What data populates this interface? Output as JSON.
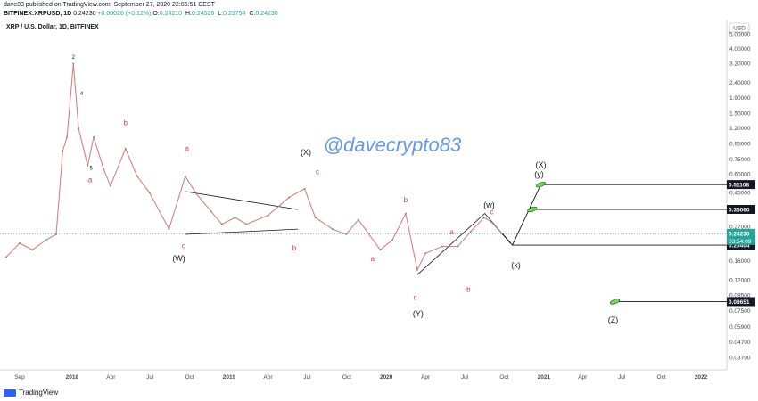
{
  "header": {
    "line1": "dave83 published on TradingView.com, September 27, 2020 22:05:51 CEST",
    "symbol": "BITFINEX:XRPUSD, 1D",
    "price": "0.24230",
    "change": "+0.00028 (+0.12%)",
    "ohlc": [
      {
        "k": "O:",
        "v": "0.24210"
      },
      {
        "k": "H:",
        "v": "0.24526"
      },
      {
        "k": "L:",
        "v": "0.23754"
      },
      {
        "k": "C:",
        "v": "0.24230"
      }
    ]
  },
  "footer": {
    "brand": "TradingView"
  },
  "chart_data": {
    "type": "line",
    "title": "XRP / U.S. Dollar, 1D, BITFINEX",
    "watermark": "@davecrypto83",
    "currency": "USD",
    "yscale": "log",
    "ylim": [
      0.032,
      6.0
    ],
    "y_ticks": [
      "5.00000",
      "4.00000",
      "3.20000",
      "2.40000",
      "1.90000",
      "1.50000",
      "1.20000",
      "0.95000",
      "0.75000",
      "0.60000",
      "0.45000",
      "0.35000",
      "0.27000",
      "0.21000",
      "0.16000",
      "0.12000",
      "0.09500",
      "0.07500",
      "0.05900",
      "0.04700",
      "0.03700"
    ],
    "x_ticks": [
      "Sep",
      "2018",
      "Apr",
      "Jul",
      "Oct",
      "2019",
      "Apr",
      "Jul",
      "Oct",
      "2020",
      "Apr",
      "Jul",
      "Oct",
      "2021",
      "Apr",
      "Jul",
      "Oct",
      "2022"
    ],
    "series": [
      {
        "x": [
          "2017-08-01",
          "2017-09-01",
          "2017-10-01",
          "2017-11-01",
          "2017-11-25",
          "2017-12-10",
          "2017-12-20",
          "2018-01-04",
          "2018-01-16",
          "2018-02-06",
          "2018-02-20",
          "2018-03-15",
          "2018-03-31",
          "2018-05-05",
          "2018-06-01",
          "2018-06-30",
          "2018-08-14",
          "2018-09-21",
          "2018-10-15",
          "2018-11-20",
          "2018-12-15",
          "2019-01-15",
          "2019-02-10",
          "2019-04-01",
          "2019-05-20",
          "2019-06-25",
          "2019-07-20",
          "2019-08-29",
          "2019-09-30",
          "2019-10-28",
          "2019-12-18",
          "2020-01-15",
          "2020-02-15",
          "2020-03-13",
          "2020-04-01",
          "2020-05-10",
          "2020-06-15",
          "2020-07-15",
          "2020-08-15",
          "2020-09-01",
          "2020-09-27"
        ],
        "y": [
          0.17,
          0.21,
          0.19,
          0.22,
          0.24,
          0.85,
          1.05,
          3.2,
          1.2,
          0.68,
          1.05,
          0.65,
          0.5,
          0.88,
          0.58,
          0.45,
          0.26,
          0.58,
          0.45,
          0.34,
          0.28,
          0.31,
          0.28,
          0.32,
          0.42,
          0.48,
          0.31,
          0.26,
          0.24,
          0.3,
          0.19,
          0.22,
          0.33,
          0.14,
          0.18,
          0.2,
          0.2,
          0.25,
          0.31,
          0.29,
          0.24
        ]
      }
    ],
    "projection": {
      "x": [
        "2020-09-27",
        "2020-10-20",
        "2020-12-25"
      ],
      "y": [
        0.2423,
        0.204,
        0.511
      ]
    },
    "trendlines": [
      {
        "x": [
          "2018-09-21",
          "2019-06-10"
        ],
        "y": [
          0.46,
          0.35
        ]
      },
      {
        "x": [
          "2018-09-21",
          "2019-06-10"
        ],
        "y": [
          0.24,
          0.26
        ]
      },
      {
        "x": [
          "2020-03-13",
          "2020-08-17"
        ],
        "y": [
          0.13,
          0.33
        ]
      },
      {
        "x": [
          "2020-08-17",
          "2020-10-15"
        ],
        "y": [
          0.33,
          0.21
        ]
      }
    ],
    "price_lines": [
      {
        "label": "0.51108",
        "y": 0.51108,
        "from": "2020-12-25",
        "bg": "#131722"
      },
      {
        "label": "0.35060",
        "y": 0.3506,
        "from": "2020-12-05",
        "bg": "#131722"
      },
      {
        "label": "0.20404",
        "y": 0.20404,
        "from": "2020-10-20",
        "bg": "#131722"
      },
      {
        "label": "0.08651",
        "y": 0.08651,
        "from": "2021-06-15",
        "bg": "#131722"
      }
    ],
    "last_price": {
      "label": "0.24230",
      "y": 0.2423,
      "countdown": "03:54:09",
      "bg": "#26a69a"
    },
    "targets": [
      {
        "x": "2020-12-25",
        "y": 0.511
      },
      {
        "x": "2020-12-05",
        "y": 0.3506
      },
      {
        "x": "2021-06-15",
        "y": 0.0865
      }
    ],
    "annotations": [
      {
        "text": "2",
        "x": "2018-01-04",
        "y": 3.45,
        "style": "sm"
      },
      {
        "text": "4",
        "x": "2018-01-23",
        "y": 1.98,
        "style": "sm"
      },
      {
        "text": "5",
        "x": "2018-02-14",
        "y": 0.64,
        "style": "sm"
      },
      {
        "text": "a",
        "x": "2018-02-12",
        "y": 0.53,
        "style": "red"
      },
      {
        "text": "b",
        "x": "2018-05-05",
        "y": 1.26,
        "style": "red"
      },
      {
        "text": "a",
        "x": "2018-09-25",
        "y": 0.85,
        "style": "red"
      },
      {
        "text": "c",
        "x": "2018-09-17",
        "y": 0.195,
        "style": "red"
      },
      {
        "text": "(W)",
        "x": "2018-09-06",
        "y": 0.16,
        "style": "blk"
      },
      {
        "text": "(X)",
        "x": "2019-06-28",
        "y": 0.8,
        "style": "blk"
      },
      {
        "text": "c",
        "x": "2019-07-25",
        "y": 0.6,
        "style": "red"
      },
      {
        "text": "b",
        "x": "2019-06-01",
        "y": 0.188,
        "style": "red"
      },
      {
        "text": "a",
        "x": "2019-11-30",
        "y": 0.16,
        "style": "red"
      },
      {
        "text": "b",
        "x": "2020-02-15",
        "y": 0.39,
        "style": "red"
      },
      {
        "text": "a",
        "x": "2020-06-01",
        "y": 0.24,
        "style": "red"
      },
      {
        "text": "b",
        "x": "2020-07-10",
        "y": 0.1,
        "style": "red"
      },
      {
        "text": "c",
        "x": "2020-03-08",
        "y": 0.089,
        "style": "red"
      },
      {
        "text": "(Y)",
        "x": "2020-03-15",
        "y": 0.069,
        "style": "blk"
      },
      {
        "text": "(w)",
        "x": "2020-08-27",
        "y": 0.36,
        "style": "blk"
      },
      {
        "text": "c",
        "x": "2020-09-02",
        "y": 0.325,
        "style": "red"
      },
      {
        "text": "(x)",
        "x": "2020-10-28",
        "y": 0.145,
        "style": "blk"
      },
      {
        "text": "(X)",
        "x": "2020-12-25",
        "y": 0.66,
        "style": "blk"
      },
      {
        "text": "(y)",
        "x": "2020-12-21",
        "y": 0.575,
        "style": "blk"
      },
      {
        "text": "(Z)",
        "x": "2021-06-11",
        "y": 0.063,
        "style": "blk"
      }
    ]
  }
}
